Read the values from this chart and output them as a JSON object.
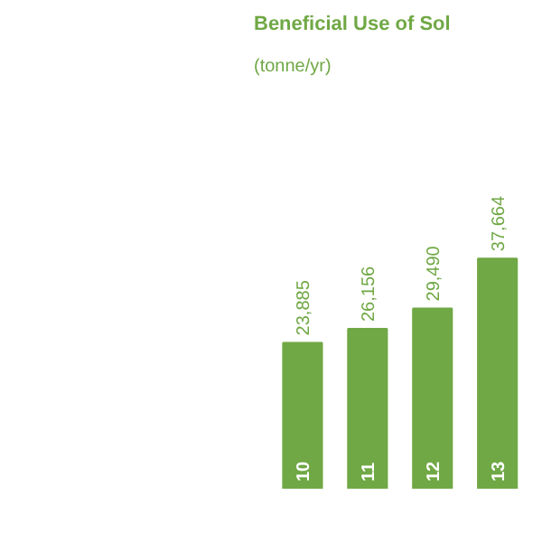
{
  "chart_data": {
    "type": "bar",
    "title": "Beneficial Use of Sol",
    "subtitle": "(tonne/yr)",
    "categories": [
      "10",
      "11",
      "12",
      "13"
    ],
    "values": [
      23885,
      26156,
      29490,
      37664
    ],
    "value_labels": [
      "23,885",
      "26,156",
      "29,490",
      "37,664"
    ],
    "color": "#70a845",
    "grid": false
  }
}
